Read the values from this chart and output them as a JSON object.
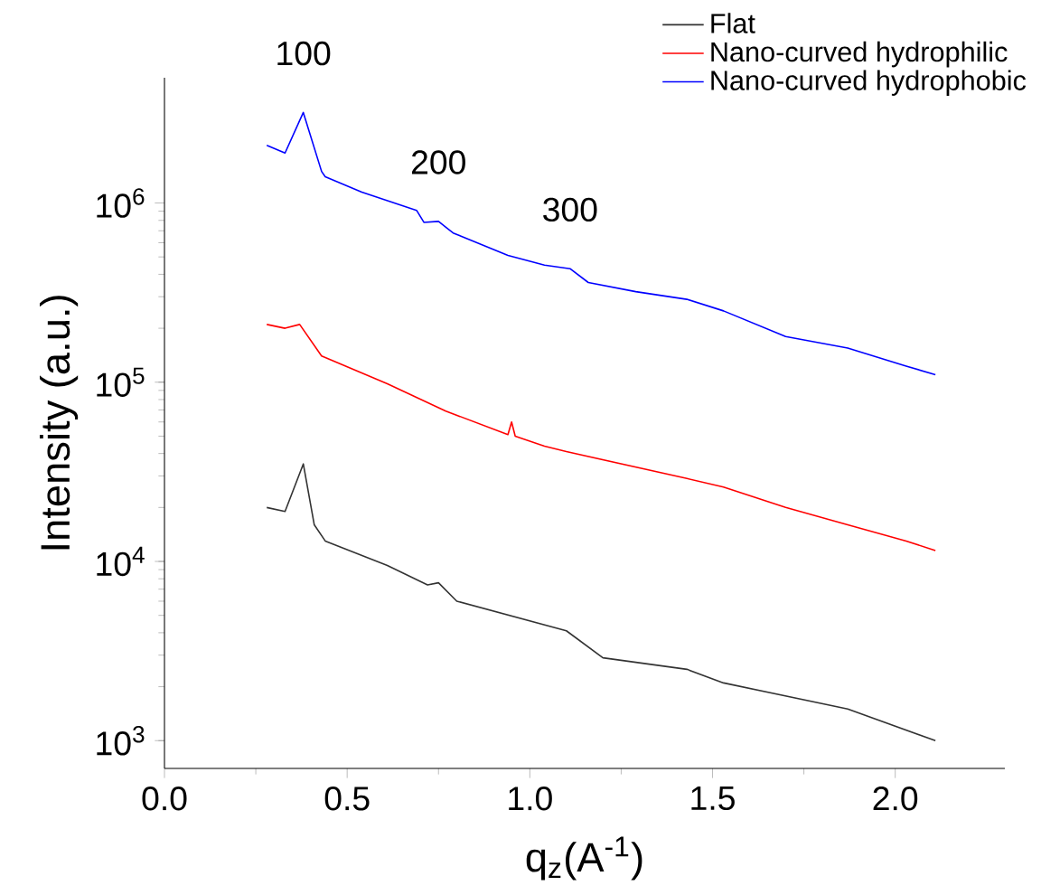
{
  "chart_data": {
    "type": "line",
    "xlabel": "q$_{z}$(A$^{-1}$)",
    "ylabel": "Intensity (a.u.)",
    "xlim": [
      0,
      2.3
    ],
    "xticks": [
      {
        "value": 0,
        "label": "0.0"
      },
      0.5,
      {
        "value": 1,
        "label": "1.0"
      },
      1.5,
      {
        "value": 2,
        "label": "2.0"
      }
    ],
    "ylim": [
      700,
      5000000
    ],
    "yticks": [
      {
        "value": 1000,
        "label": "10$^{3}$"
      },
      {
        "value": 10000,
        "label": "10$^{4}$"
      },
      {
        "value": 100000,
        "label": "10$^{5}$"
      },
      {
        "value": 1000000,
        "label": "10$^{6}$"
      }
    ],
    "log": "y",
    "grid": false,
    "legend": "top right",
    "marker": "none",
    "line_style": "solid",
    "annotations": [
      {
        "text": "100",
        "x": 0.38,
        "y": 3200000
      },
      {
        "text": "200",
        "x": 0.75,
        "y": 790000
      },
      {
        "text": "300",
        "x": 1.11,
        "y": 430000
      }
    ],
    "series": [
      {
        "name": "Flat",
        "color": "#333333",
        "x": [
          0.28,
          0.33,
          0.38,
          0.41,
          0.44,
          0.61,
          0.72,
          0.75,
          0.8,
          1.1,
          1.2,
          1.43,
          1.53,
          1.87,
          2.11
        ],
        "values": [
          20000,
          19000,
          35000,
          16000,
          13000,
          9500,
          7400,
          7600,
          6000,
          4100,
          2900,
          2500,
          2100,
          1500,
          1000
        ]
      },
      {
        "name": "Nano-curved hydrophilic",
        "color": "#ff0000",
        "x": [
          0.28,
          0.33,
          0.37,
          0.43,
          0.61,
          0.77,
          0.94,
          0.95,
          0.96,
          1.04,
          1.1,
          1.43,
          1.53,
          1.7,
          1.87,
          2.03,
          2.11
        ],
        "values": [
          210000,
          200000,
          210000,
          140000,
          98000,
          69000,
          51000,
          60000,
          50000,
          44000,
          41000,
          29000,
          26000,
          20000,
          16000,
          13000,
          11500
        ]
      },
      {
        "name": "Nano-curved hydrophobic",
        "color": "#0000ff",
        "x": [
          0.28,
          0.33,
          0.38,
          0.43,
          0.44,
          0.54,
          0.69,
          0.71,
          0.75,
          0.79,
          0.94,
          1.04,
          1.11,
          1.16,
          1.29,
          1.43,
          1.53,
          1.7,
          1.87,
          2.03,
          2.11
        ],
        "values": [
          2100000,
          1900000,
          3200000,
          1500000,
          1400000,
          1150000,
          910000,
          780000,
          790000,
          680000,
          510000,
          450000,
          430000,
          360000,
          320000,
          290000,
          250000,
          180000,
          155000,
          123000,
          110000
        ]
      }
    ]
  }
}
